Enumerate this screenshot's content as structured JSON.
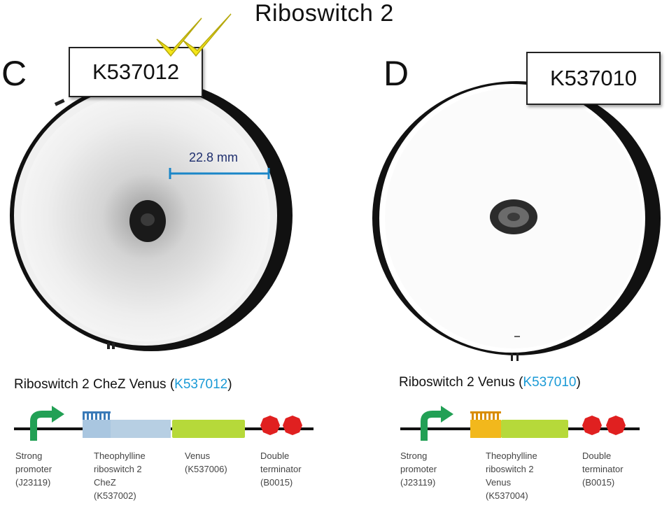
{
  "figure": {
    "title": "Riboswitch 2"
  },
  "panels": [
    {
      "letter": "C",
      "label": "K537012",
      "annotation": "22.8 mm",
      "construct": {
        "title_prefix": "Riboswitch 2 CheZ Venus (",
        "title_link": "K537012",
        "title_suffix": ")",
        "parts": [
          {
            "lines": [
              "Strong",
              "promoter",
              "(J23119)"
            ]
          },
          {
            "lines": [
              "Theophylline",
              "riboswitch 2",
              "CheZ",
              "(K537002)"
            ]
          },
          {
            "lines": [
              "Venus",
              "(K537006)"
            ]
          },
          {
            "lines": [
              "Double",
              "terminator",
              "(B0015)"
            ]
          }
        ]
      }
    },
    {
      "letter": "D",
      "label": "K537010",
      "construct": {
        "title_prefix": "Riboswitch 2 Venus (",
        "title_link": "K537010",
        "title_suffix": ")",
        "parts": [
          {
            "lines": [
              "Strong",
              "promoter",
              "(J23119)"
            ]
          },
          {
            "lines": [
              "Theophylline",
              "riboswitch 2",
              "Venus",
              "(K537004)"
            ]
          },
          {
            "lines": [
              "Double",
              "terminator",
              "(B0015)"
            ]
          }
        ]
      }
    }
  ],
  "colors": {
    "promoter": "#22a055",
    "riboswitch_c": "#a9c6e0",
    "riboswitch_d": "#f2b81c",
    "cds": "#b6d93a",
    "terminator": "#e02020",
    "measure": "#1a86c8",
    "link": "#1a9ad6",
    "check": "#f5e619"
  }
}
